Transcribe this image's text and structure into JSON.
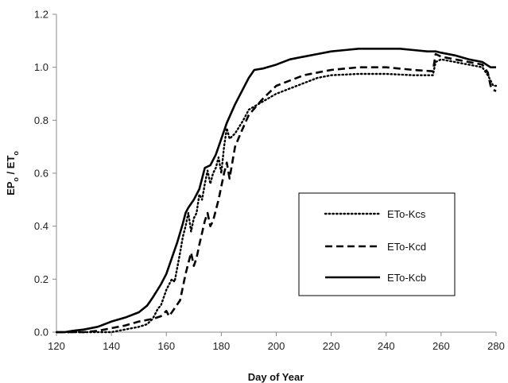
{
  "chart_data": {
    "type": "line",
    "title": "",
    "xlabel": "Day of Year",
    "ylabel": {
      "base1": "EP",
      "sub1": "o",
      "sep": " / ",
      "base2": "ET",
      "sub2": "o"
    },
    "xlim": [
      120,
      280
    ],
    "ylim": [
      0.0,
      1.2
    ],
    "x_ticks": [
      120,
      140,
      160,
      180,
      200,
      220,
      240,
      260,
      280
    ],
    "y_ticks": [
      0.0,
      0.2,
      0.4,
      0.6,
      0.8,
      1.0,
      1.2
    ],
    "y_tick_labels": [
      "0.0",
      "0.2",
      "0.4",
      "0.6",
      "0.8",
      "1.0",
      "1.2"
    ],
    "grid": false,
    "legend_position": "center-right",
    "series": [
      {
        "name": "ETo-Kcs",
        "style": "dotted",
        "color": "#000000",
        "points": [
          [
            120,
            0.0
          ],
          [
            125,
            0.0
          ],
          [
            130,
            0.0
          ],
          [
            135,
            0.0
          ],
          [
            140,
            0.0
          ],
          [
            145,
            0.01
          ],
          [
            150,
            0.02
          ],
          [
            153,
            0.03
          ],
          [
            155,
            0.05
          ],
          [
            157,
            0.09
          ],
          [
            158,
            0.1
          ],
          [
            160,
            0.16
          ],
          [
            162,
            0.2
          ],
          [
            163,
            0.19
          ],
          [
            165,
            0.3
          ],
          [
            166,
            0.36
          ],
          [
            167,
            0.4
          ],
          [
            168,
            0.45
          ],
          [
            169,
            0.38
          ],
          [
            170,
            0.43
          ],
          [
            171,
            0.45
          ],
          [
            172,
            0.52
          ],
          [
            173,
            0.5
          ],
          [
            174,
            0.56
          ],
          [
            175,
            0.61
          ],
          [
            176,
            0.56
          ],
          [
            177,
            0.6
          ],
          [
            178,
            0.62
          ],
          [
            179,
            0.66
          ],
          [
            180,
            0.6
          ],
          [
            181,
            0.7
          ],
          [
            182,
            0.77
          ],
          [
            183,
            0.73
          ],
          [
            185,
            0.75
          ],
          [
            188,
            0.8
          ],
          [
            190,
            0.84
          ],
          [
            195,
            0.87
          ],
          [
            200,
            0.9
          ],
          [
            205,
            0.92
          ],
          [
            210,
            0.94
          ],
          [
            215,
            0.96
          ],
          [
            220,
            0.97
          ],
          [
            230,
            0.975
          ],
          [
            240,
            0.975
          ],
          [
            250,
            0.97
          ],
          [
            257,
            0.97
          ],
          [
            258,
            1.02
          ],
          [
            260,
            1.03
          ],
          [
            265,
            1.02
          ],
          [
            270,
            1.01
          ],
          [
            275,
            1.0
          ],
          [
            277,
            0.97
          ],
          [
            278,
            0.95
          ],
          [
            279,
            0.93
          ],
          [
            280,
            0.93
          ]
        ]
      },
      {
        "name": "ETo-Kcd",
        "style": "dashed",
        "color": "#000000",
        "points": [
          [
            120,
            0.0
          ],
          [
            125,
            0.0
          ],
          [
            130,
            0.0
          ],
          [
            135,
            0.005
          ],
          [
            140,
            0.015
          ],
          [
            145,
            0.025
          ],
          [
            150,
            0.04
          ],
          [
            155,
            0.05
          ],
          [
            158,
            0.06
          ],
          [
            160,
            0.08
          ],
          [
            161,
            0.06
          ],
          [
            163,
            0.09
          ],
          [
            165,
            0.12
          ],
          [
            167,
            0.22
          ],
          [
            168,
            0.26
          ],
          [
            169,
            0.3
          ],
          [
            170,
            0.25
          ],
          [
            171,
            0.28
          ],
          [
            172,
            0.33
          ],
          [
            174,
            0.42
          ],
          [
            175,
            0.45
          ],
          [
            176,
            0.4
          ],
          [
            177,
            0.42
          ],
          [
            179,
            0.5
          ],
          [
            180,
            0.55
          ],
          [
            181,
            0.6
          ],
          [
            182,
            0.64
          ],
          [
            183,
            0.58
          ],
          [
            184,
            0.64
          ],
          [
            185,
            0.7
          ],
          [
            187,
            0.75
          ],
          [
            190,
            0.82
          ],
          [
            195,
            0.88
          ],
          [
            200,
            0.93
          ],
          [
            205,
            0.95
          ],
          [
            210,
            0.97
          ],
          [
            215,
            0.98
          ],
          [
            220,
            0.99
          ],
          [
            230,
            1.0
          ],
          [
            240,
            1.0
          ],
          [
            250,
            0.99
          ],
          [
            257,
            0.985
          ],
          [
            258,
            1.05
          ],
          [
            260,
            1.04
          ],
          [
            265,
            1.03
          ],
          [
            270,
            1.02
          ],
          [
            275,
            1.01
          ],
          [
            277,
            0.98
          ],
          [
            278,
            0.93
          ],
          [
            279,
            0.915
          ],
          [
            280,
            0.91
          ]
        ]
      },
      {
        "name": "ETo-Kcb",
        "style": "solid",
        "color": "#000000",
        "points": [
          [
            120,
            0.0
          ],
          [
            123,
            0.0
          ],
          [
            126,
            0.005
          ],
          [
            130,
            0.01
          ],
          [
            135,
            0.02
          ],
          [
            140,
            0.04
          ],
          [
            145,
            0.055
          ],
          [
            150,
            0.075
          ],
          [
            153,
            0.1
          ],
          [
            155,
            0.13
          ],
          [
            158,
            0.18
          ],
          [
            160,
            0.22
          ],
          [
            162,
            0.28
          ],
          [
            164,
            0.34
          ],
          [
            166,
            0.41
          ],
          [
            167,
            0.45
          ],
          [
            168,
            0.47
          ],
          [
            170,
            0.5
          ],
          [
            172,
            0.54
          ],
          [
            173,
            0.58
          ],
          [
            174,
            0.62
          ],
          [
            176,
            0.63
          ],
          [
            178,
            0.67
          ],
          [
            180,
            0.73
          ],
          [
            182,
            0.79
          ],
          [
            185,
            0.86
          ],
          [
            188,
            0.92
          ],
          [
            190,
            0.96
          ],
          [
            192,
            0.99
          ],
          [
            195,
            0.995
          ],
          [
            200,
            1.01
          ],
          [
            205,
            1.03
          ],
          [
            210,
            1.04
          ],
          [
            215,
            1.05
          ],
          [
            220,
            1.06
          ],
          [
            225,
            1.065
          ],
          [
            230,
            1.07
          ],
          [
            240,
            1.07
          ],
          [
            245,
            1.07
          ],
          [
            250,
            1.065
          ],
          [
            255,
            1.06
          ],
          [
            258,
            1.06
          ],
          [
            260,
            1.055
          ],
          [
            265,
            1.045
          ],
          [
            270,
            1.03
          ],
          [
            275,
            1.02
          ],
          [
            278,
            1.0
          ],
          [
            280,
            1.0
          ]
        ]
      }
    ]
  }
}
